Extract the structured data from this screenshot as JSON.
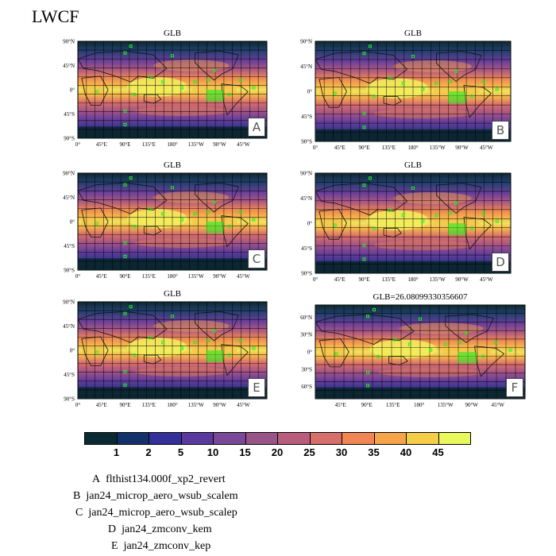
{
  "title": "LWCF",
  "panels": [
    {
      "id": "A",
      "title": "GLB",
      "badge": "A"
    },
    {
      "id": "B",
      "title": "GLB",
      "badge": "B"
    },
    {
      "id": "C",
      "title": "GLB",
      "badge": "C"
    },
    {
      "id": "D",
      "title": "GLB",
      "badge": "D"
    },
    {
      "id": "E",
      "title": "GLB",
      "badge": "E"
    },
    {
      "id": "F",
      "title": "GLB=26.08099330356607",
      "badge": "F"
    }
  ],
  "lat_ticks_full": [
    "90°N",
    "45°N",
    "0°",
    "45°S",
    "90°S"
  ],
  "lat_ticks_f": [
    "60°N",
    "30°N",
    "0°",
    "30°S",
    "60°S"
  ],
  "lon_ticks_full": [
    "0°",
    "45°E",
    "90°E",
    "135°E",
    "180°",
    "135°W",
    "90°W",
    "45°W"
  ],
  "lon_ticks_f": [
    "45°E",
    "90°E",
    "135°E",
    "180°",
    "135°W",
    "90°W",
    "45°W"
  ],
  "colorbar": {
    "labels": [
      "1",
      "2",
      "5",
      "10",
      "15",
      "20",
      "25",
      "30",
      "35",
      "40",
      "45"
    ],
    "colors": [
      "#0a2a33",
      "#14326a",
      "#34309a",
      "#5a3a9e",
      "#7a4898",
      "#995488",
      "#b85e7c",
      "#d66e6a",
      "#ef8654",
      "#f6a44a",
      "#f6cd48",
      "#e9f85c"
    ]
  },
  "legend": [
    {
      "letter": "A",
      "name": "flthist134.000f_xp2_revert"
    },
    {
      "letter": "B",
      "name": "jan24_microp_aero_wsub_scalem"
    },
    {
      "letter": "C",
      "name": "jan24_microp_aero_wsub_scalep"
    },
    {
      "letter": "D",
      "name": "jan24_zmconv_kem"
    },
    {
      "letter": "E",
      "name": "jan24_zmconv_kep"
    }
  ]
}
